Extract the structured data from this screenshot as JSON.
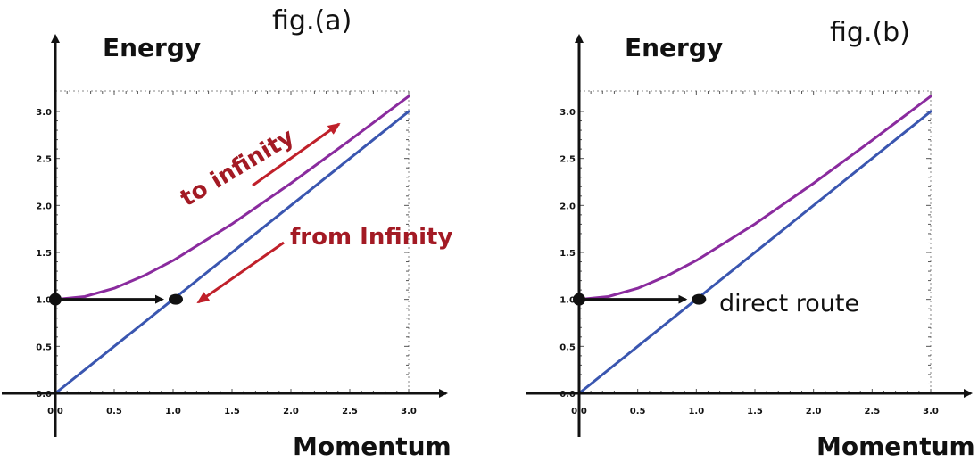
{
  "chart_data": [
    {
      "type": "line",
      "title": "fig.(a)",
      "xlabel": "Momentum",
      "ylabel": "Energy",
      "xlim": [
        0,
        3
      ],
      "ylim": [
        0,
        3
      ],
      "x_ticks": [
        "0.0",
        "0.5",
        "1.0",
        "1.5",
        "2.0",
        "2.5",
        "3.0"
      ],
      "y_ticks": [
        "0.0",
        "0.5",
        "1.0",
        "1.5",
        "2.0",
        "2.5",
        "3.0"
      ],
      "series": [
        {
          "color": "#8a2b9e",
          "x": [
            0,
            0.25,
            0.5,
            0.75,
            1.0,
            1.5,
            2.0,
            2.5,
            3.0
          ],
          "y": [
            1.0,
            1.03,
            1.118,
            1.25,
            1.414,
            1.803,
            2.236,
            2.693,
            3.162
          ]
        },
        {
          "color": "#3a56b0",
          "x": [
            0,
            3.0
          ],
          "y": [
            0,
            3.0
          ]
        }
      ],
      "points": [
        {
          "x": 0,
          "y": 1.0
        },
        {
          "x": 1.0,
          "y": 1.0
        }
      ],
      "annotations": [
        "to infinity",
        "from Infinity"
      ]
    },
    {
      "type": "line",
      "title": "fig.(b)",
      "xlabel": "Momentum",
      "ylabel": "Energy",
      "xlim": [
        0,
        3
      ],
      "ylim": [
        0,
        3
      ],
      "x_ticks": [
        "0.0",
        "0.5",
        "1.0",
        "1.5",
        "2.0",
        "2.5",
        "3.0"
      ],
      "y_ticks": [
        "0.0",
        "0.5",
        "1.0",
        "1.5",
        "2.0",
        "2.5",
        "3.0"
      ],
      "series": [
        {
          "color": "#8a2b9e",
          "x": [
            0,
            0.25,
            0.5,
            0.75,
            1.0,
            1.5,
            2.0,
            2.5,
            3.0
          ],
          "y": [
            1.0,
            1.03,
            1.118,
            1.25,
            1.414,
            1.803,
            2.236,
            2.693,
            3.162
          ]
        },
        {
          "color": "#3a56b0",
          "x": [
            0,
            3.0
          ],
          "y": [
            0,
            3.0
          ]
        }
      ],
      "points": [
        {
          "x": 0,
          "y": 1.0
        },
        {
          "x": 1.0,
          "y": 1.0
        }
      ],
      "annotations": [
        "direct route"
      ]
    }
  ],
  "colors": {
    "curve": "#8a2b9e",
    "line": "#3a56b0",
    "annotation_red": "#a31a24",
    "axis": "#111111",
    "frame_dash": "#888888"
  }
}
